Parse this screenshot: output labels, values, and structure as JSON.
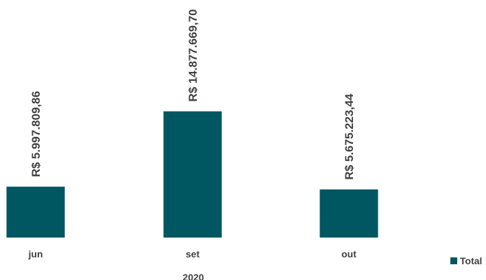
{
  "chart_data": {
    "type": "bar",
    "categories": [
      "jun",
      "set",
      "out"
    ],
    "group_label": "2020",
    "series": [
      {
        "name": "Total",
        "values": [
          5997809.86,
          14877669.7,
          5675223.44
        ],
        "value_labels": [
          "R$ 5.997.809,86",
          "R$ 14.877.669,70",
          "R$ 5.675.223,44"
        ],
        "color": "#005661"
      }
    ],
    "legend": {
      "position": "bottom-right"
    },
    "grid": false,
    "ylim": [
      0,
      28000000
    ]
  }
}
